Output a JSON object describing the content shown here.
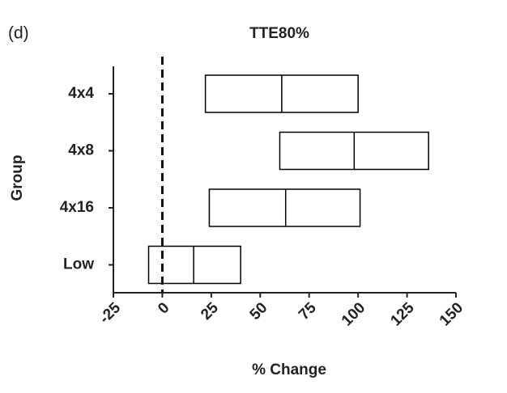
{
  "chart_data": {
    "type": "range",
    "panel_label": "(d)",
    "title": "TTE80%",
    "x_label": "% Change",
    "y_label": "Group",
    "categories": [
      "4x4",
      "4x8",
      "4x16",
      "Low"
    ],
    "low": [
      22,
      60,
      24,
      -7
    ],
    "median": [
      61,
      98,
      63,
      16
    ],
    "high": [
      100,
      136,
      101,
      40
    ],
    "reference_line": 0,
    "color": "#000000",
    "xlim": [
      -25,
      150
    ],
    "xticks": [
      -25,
      0,
      25,
      50,
      75,
      100,
      125,
      150
    ]
  }
}
